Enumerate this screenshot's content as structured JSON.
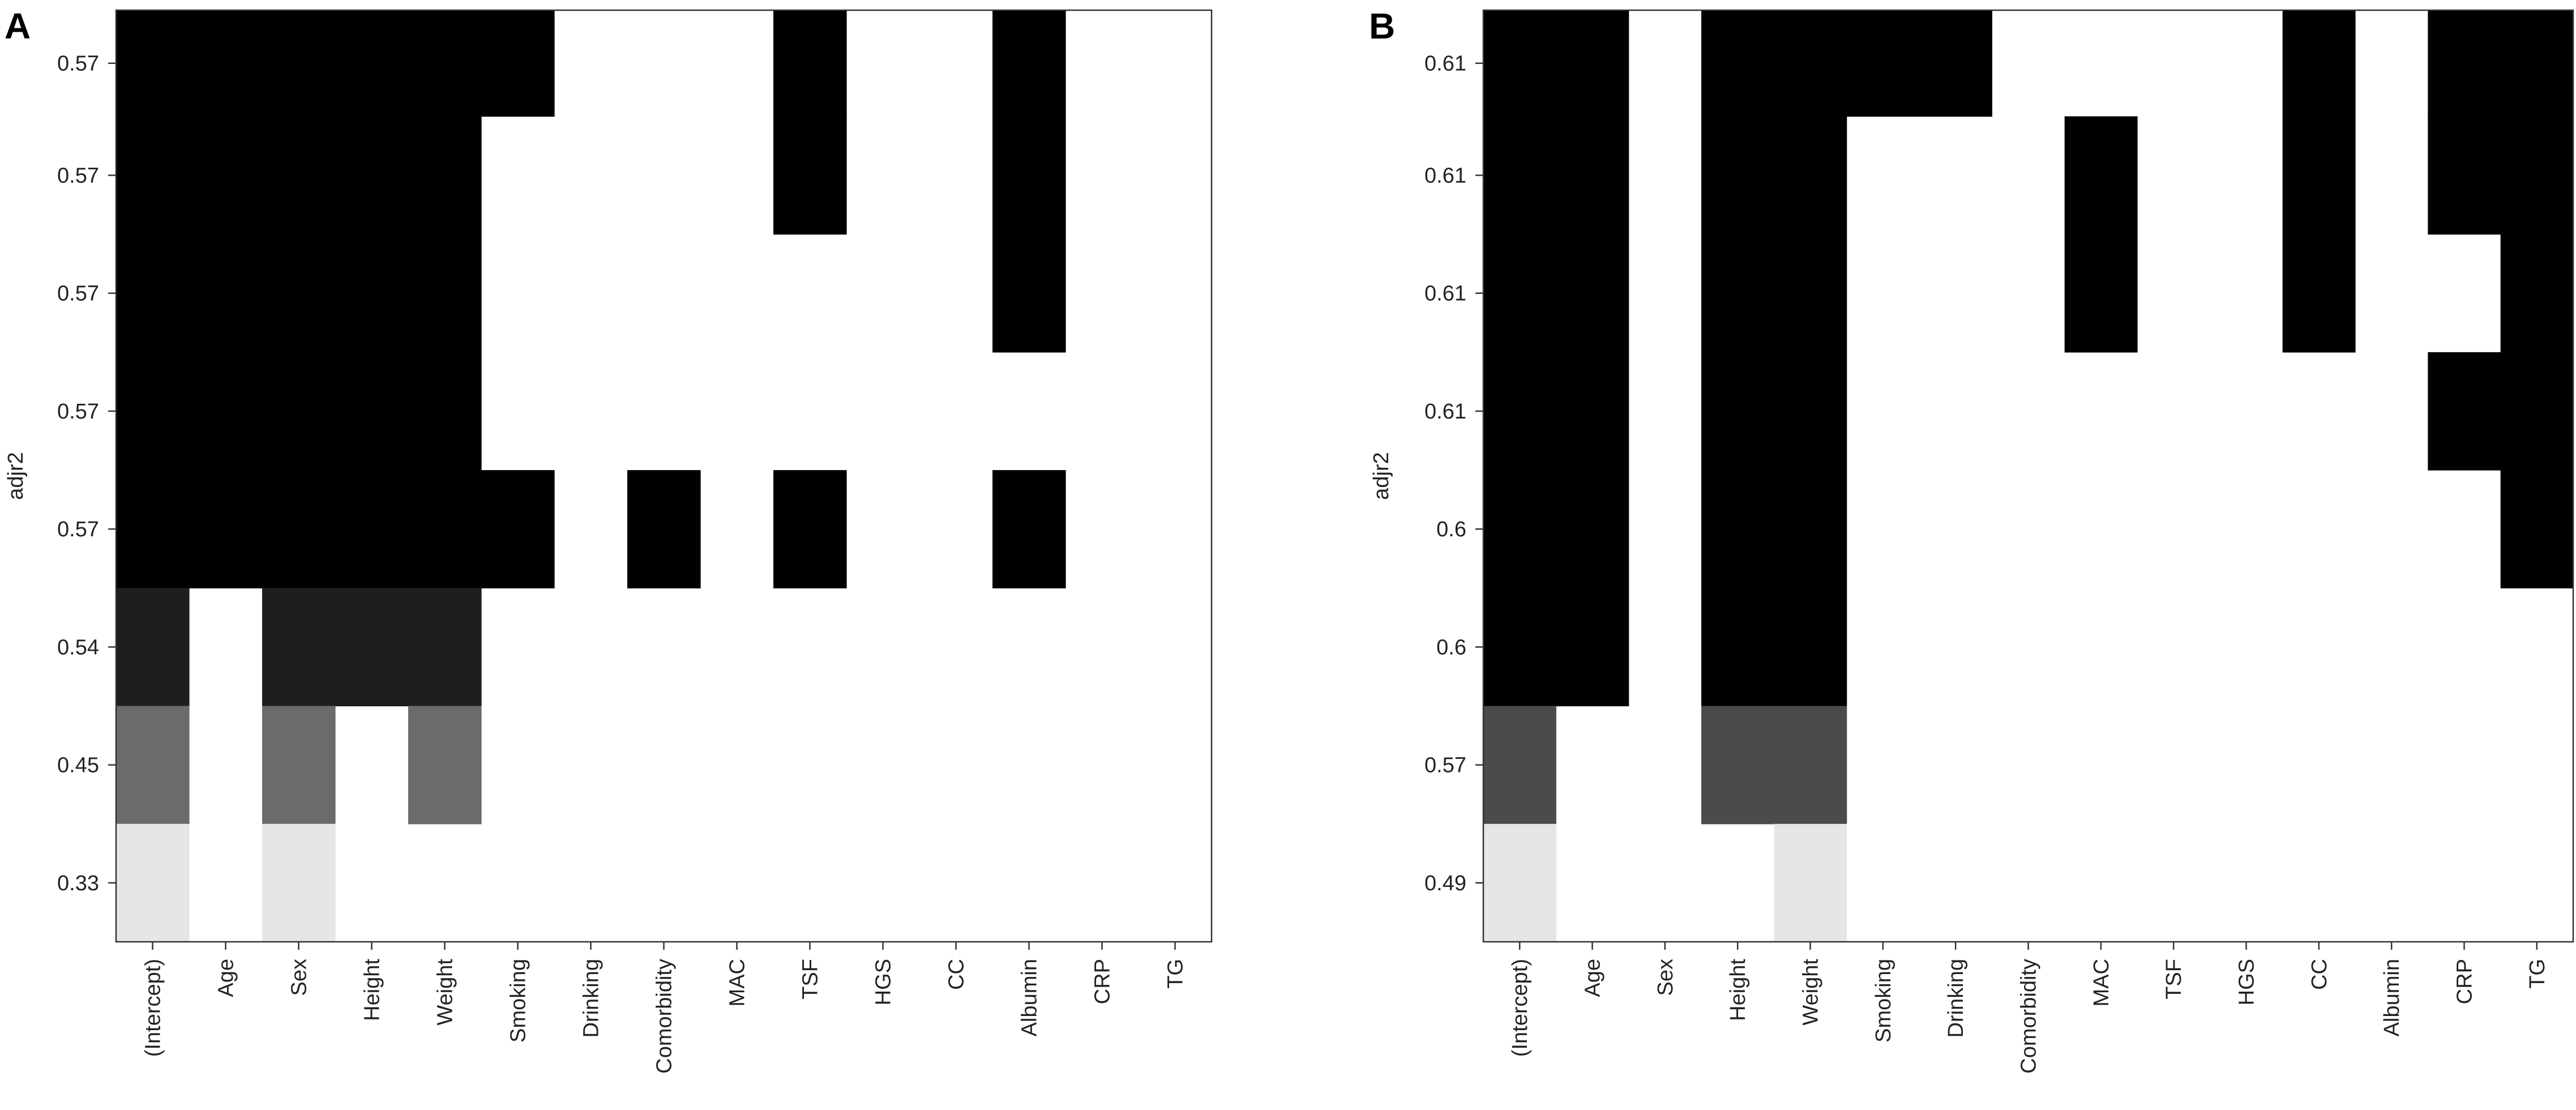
{
  "chart_data": [
    {
      "type": "heatmap",
      "panel_label": "A",
      "ylabel": "adjr2",
      "xlabel": "",
      "categories": [
        "(Intercept)",
        "Age",
        "Sex",
        "Height",
        "Weight",
        "Smoking",
        "Drinking",
        "Comorbidity",
        "MAC",
        "TSF",
        "HGS",
        "CC",
        "Albumin",
        "CRP",
        "TG"
      ],
      "row_labels": [
        "0.57",
        "0.57",
        "0.57",
        "0.57",
        "0.57",
        "0.54",
        "0.45",
        "0.33"
      ],
      "colors": {
        "filled": [
          "#000000",
          "#000000",
          "#000000",
          "#000000",
          "#000000",
          "#1e1e1e",
          "#6b6b6b",
          "#e6e6e6"
        ],
        "empty": "#ffffff"
      },
      "rows": [
        [
          1,
          1,
          1,
          1,
          1,
          1,
          0,
          0,
          0,
          1,
          0,
          0,
          1,
          0,
          0
        ],
        [
          1,
          1,
          1,
          1,
          1,
          0,
          0,
          0,
          0,
          1,
          0,
          0,
          1,
          0,
          0
        ],
        [
          1,
          1,
          1,
          1,
          1,
          0,
          0,
          0,
          0,
          0,
          0,
          0,
          1,
          0,
          0
        ],
        [
          1,
          1,
          1,
          1,
          1,
          0,
          0,
          0,
          0,
          0,
          0,
          0,
          0,
          0,
          0
        ],
        [
          1,
          1,
          1,
          1,
          1,
          1,
          0,
          1,
          0,
          1,
          0,
          0,
          1,
          0,
          0
        ],
        [
          1,
          0,
          1,
          1,
          1,
          0,
          0,
          0,
          0,
          0,
          0,
          0,
          0,
          0,
          0
        ],
        [
          1,
          0,
          1,
          0,
          1,
          0,
          0,
          0,
          0,
          0,
          0,
          0,
          0,
          0,
          0
        ],
        [
          1,
          0,
          1,
          0,
          0,
          0,
          0,
          0,
          0,
          0,
          0,
          0,
          0,
          0,
          0
        ]
      ],
      "row_span_ratio": [
        0.9,
        1,
        1,
        1,
        1,
        1,
        1,
        1
      ]
    },
    {
      "type": "heatmap",
      "panel_label": "B",
      "ylabel": "adjr2",
      "xlabel": "",
      "categories": [
        "(Intercept)",
        "Age",
        "Sex",
        "Height",
        "Weight",
        "Smoking",
        "Drinking",
        "Comorbidity",
        "MAC",
        "TSF",
        "HGS",
        "CC",
        "Albumin",
        "CRP",
        "TG"
      ],
      "row_labels": [
        "0.61",
        "0.61",
        "0.61",
        "0.61",
        "0.6",
        "0.6",
        "0.57",
        "0.49"
      ],
      "colors": {
        "filled": [
          "#000000",
          "#000000",
          "#000000",
          "#000000",
          "#000000",
          "#000000",
          "#4b4b4b",
          "#e6e6e6"
        ],
        "empty": "#ffffff"
      },
      "rows": [
        [
          1,
          1,
          0,
          1,
          1,
          1,
          1,
          0,
          0,
          0,
          0,
          1,
          0,
          1,
          1
        ],
        [
          1,
          1,
          0,
          1,
          1,
          0,
          0,
          0,
          1,
          0,
          0,
          1,
          0,
          1,
          1
        ],
        [
          1,
          1,
          0,
          1,
          1,
          0,
          0,
          0,
          1,
          0,
          0,
          1,
          0,
          0,
          1
        ],
        [
          1,
          1,
          0,
          1,
          1,
          0,
          0,
          0,
          0,
          0,
          0,
          0,
          0,
          1,
          1
        ],
        [
          1,
          1,
          0,
          1,
          1,
          0,
          0,
          0,
          0,
          0,
          0,
          0,
          0,
          0,
          1
        ],
        [
          1,
          1,
          0,
          1,
          1,
          0,
          0,
          0,
          0,
          0,
          0,
          0,
          0,
          0,
          0
        ],
        [
          1,
          0,
          0,
          1,
          1,
          0,
          0,
          0,
          0,
          0,
          0,
          0,
          0,
          0,
          0
        ],
        [
          1,
          0,
          0,
          0,
          1,
          0,
          0,
          0,
          0,
          0,
          0,
          0,
          0,
          0,
          0
        ]
      ],
      "row_span_ratio": [
        0.9,
        1,
        1,
        1,
        1,
        1,
        1,
        1
      ]
    }
  ]
}
